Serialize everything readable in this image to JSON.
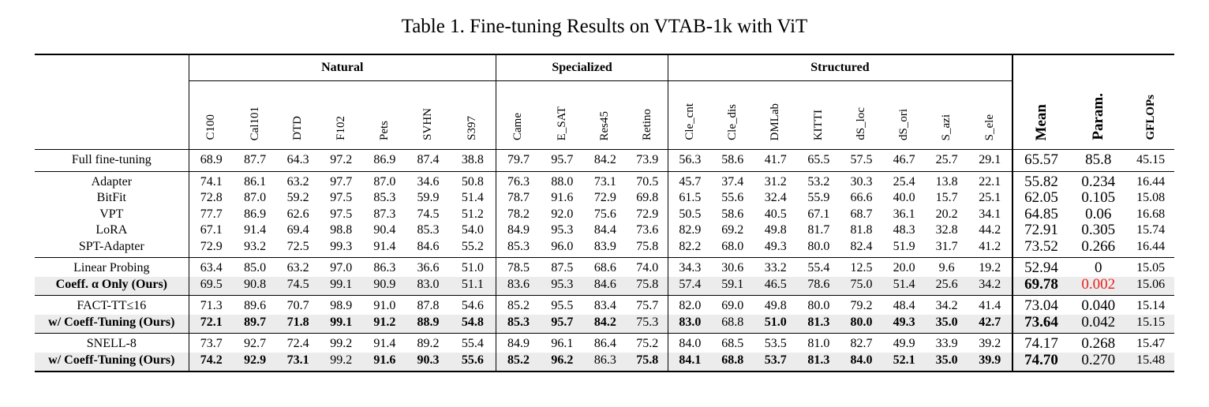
{
  "caption": "Table 1. Fine-tuning Results on VTAB-1k with ViT",
  "groups": {
    "natural": "Natural",
    "specialized": "Specialized",
    "structured": "Structured"
  },
  "columns": [
    "C100",
    "Cal101",
    "DTD",
    "F102",
    "Pets",
    "SVHN",
    "S397",
    "Came",
    "E_SAT",
    "Res45",
    "Retino",
    "Cle_cnt",
    "Cle_dis",
    "DMLab",
    "KITTI",
    "dS_loc",
    "dS_ori",
    "S_azi",
    "S_ele",
    "Mean",
    "Param.",
    "GFLOPs"
  ],
  "sections": [
    [
      {
        "name": "Full fine-tuning",
        "hl": false,
        "bold": [],
        "values": [
          "68.9",
          "87.7",
          "64.3",
          "97.2",
          "86.9",
          "87.4",
          "38.8",
          "79.7",
          "95.7",
          "84.2",
          "73.9",
          "56.3",
          "58.6",
          "41.7",
          "65.5",
          "57.5",
          "46.7",
          "25.7",
          "29.1",
          "65.57",
          "85.8",
          "45.15"
        ]
      }
    ],
    [
      {
        "name": "Adapter",
        "hl": false,
        "bold": [],
        "values": [
          "74.1",
          "86.1",
          "63.2",
          "97.7",
          "87.0",
          "34.6",
          "50.8",
          "76.3",
          "88.0",
          "73.1",
          "70.5",
          "45.7",
          "37.4",
          "31.2",
          "53.2",
          "30.3",
          "25.4",
          "13.8",
          "22.1",
          "55.82",
          "0.234",
          "16.44"
        ]
      },
      {
        "name": "BitFit",
        "hl": false,
        "bold": [],
        "values": [
          "72.8",
          "87.0",
          "59.2",
          "97.5",
          "85.3",
          "59.9",
          "51.4",
          "78.7",
          "91.6",
          "72.9",
          "69.8",
          "61.5",
          "55.6",
          "32.4",
          "55.9",
          "66.6",
          "40.0",
          "15.7",
          "25.1",
          "62.05",
          "0.105",
          "15.08"
        ]
      },
      {
        "name": "VPT",
        "hl": false,
        "bold": [],
        "values": [
          "77.7",
          "86.9",
          "62.6",
          "97.5",
          "87.3",
          "74.5",
          "51.2",
          "78.2",
          "92.0",
          "75.6",
          "72.9",
          "50.5",
          "58.6",
          "40.5",
          "67.1",
          "68.7",
          "36.1",
          "20.2",
          "34.1",
          "64.85",
          "0.06",
          "16.68"
        ]
      },
      {
        "name": "LoRA",
        "hl": false,
        "bold": [],
        "values": [
          "67.1",
          "91.4",
          "69.4",
          "98.8",
          "90.4",
          "85.3",
          "54.0",
          "84.9",
          "95.3",
          "84.4",
          "73.6",
          "82.9",
          "69.2",
          "49.8",
          "81.7",
          "81.8",
          "48.3",
          "32.8",
          "44.2",
          "72.91",
          "0.305",
          "15.74"
        ]
      },
      {
        "name": "SPT-Adapter",
        "hl": false,
        "bold": [],
        "values": [
          "72.9",
          "93.2",
          "72.5",
          "99.3",
          "91.4",
          "84.6",
          "55.2",
          "85.3",
          "96.0",
          "83.9",
          "75.8",
          "82.2",
          "68.0",
          "49.3",
          "80.0",
          "82.4",
          "51.9",
          "31.7",
          "41.2",
          "73.52",
          "0.266",
          "16.44"
        ]
      }
    ],
    [
      {
        "name": "Linear Probing",
        "hl": false,
        "bold": [],
        "values": [
          "63.4",
          "85.0",
          "63.2",
          "97.0",
          "86.3",
          "36.6",
          "51.0",
          "78.5",
          "87.5",
          "68.6",
          "74.0",
          "34.3",
          "30.6",
          "33.2",
          "55.4",
          "12.5",
          "20.0",
          "9.6",
          "19.2",
          "52.94",
          "0",
          "15.05"
        ]
      },
      {
        "name": "Coeff. α Only (Ours)",
        "hl": true,
        "nameBold": true,
        "bold": [
          19
        ],
        "red": [
          20
        ],
        "values": [
          "69.5",
          "90.8",
          "74.5",
          "99.1",
          "90.9",
          "83.0",
          "51.1",
          "83.6",
          "95.3",
          "84.6",
          "75.8",
          "57.4",
          "59.1",
          "46.5",
          "78.6",
          "75.0",
          "51.4",
          "25.6",
          "34.2",
          "69.78",
          "0.002",
          "15.06"
        ]
      }
    ],
    [
      {
        "name": "FACT-TT≤16",
        "hl": false,
        "bold": [],
        "values": [
          "71.3",
          "89.6",
          "70.7",
          "98.9",
          "91.0",
          "87.8",
          "54.6",
          "85.2",
          "95.5",
          "83.4",
          "75.7",
          "82.0",
          "69.0",
          "49.8",
          "80.0",
          "79.2",
          "48.4",
          "34.2",
          "41.4",
          "73.04",
          "0.040",
          "15.14"
        ]
      },
      {
        "name": "w/ Coeff-Tuning (Ours)",
        "hl": true,
        "nameBold": true,
        "bold": [
          0,
          1,
          2,
          3,
          4,
          5,
          6,
          7,
          8,
          9,
          11,
          13,
          14,
          15,
          16,
          17,
          18,
          19
        ],
        "values": [
          "72.1",
          "89.7",
          "71.8",
          "99.1",
          "91.2",
          "88.9",
          "54.8",
          "85.3",
          "95.7",
          "84.2",
          "75.3",
          "83.0",
          "68.8",
          "51.0",
          "81.3",
          "80.0",
          "49.3",
          "35.0",
          "42.7",
          "73.64",
          "0.042",
          "15.15"
        ]
      }
    ],
    [
      {
        "name": "SNELL-8",
        "hl": false,
        "bold": [],
        "values": [
          "73.7",
          "92.7",
          "72.4",
          "99.2",
          "91.4",
          "89.2",
          "55.4",
          "84.9",
          "96.1",
          "86.4",
          "75.2",
          "84.0",
          "68.5",
          "53.5",
          "81.0",
          "82.7",
          "49.9",
          "33.9",
          "39.2",
          "74.17",
          "0.268",
          "15.47"
        ]
      },
      {
        "name": "w/ Coeff-Tuning (Ours)",
        "hl": true,
        "nameBold": true,
        "bold": [
          0,
          1,
          2,
          4,
          5,
          6,
          7,
          8,
          10,
          11,
          12,
          13,
          14,
          15,
          16,
          17,
          18,
          19
        ],
        "values": [
          "74.2",
          "92.9",
          "73.1",
          "99.2",
          "91.6",
          "90.3",
          "55.6",
          "85.2",
          "96.2",
          "86.3",
          "75.8",
          "84.1",
          "68.8",
          "53.7",
          "81.3",
          "84.0",
          "52.1",
          "35.0",
          "39.9",
          "74.70",
          "0.270",
          "15.48"
        ]
      }
    ]
  ]
}
